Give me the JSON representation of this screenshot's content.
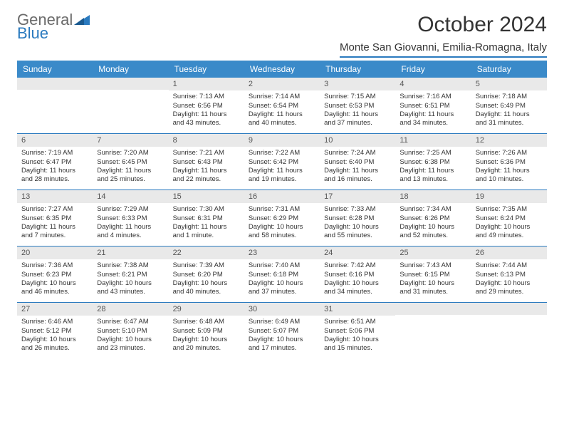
{
  "logo": {
    "part1": "General",
    "part2": "Blue"
  },
  "header": {
    "title": "October 2024",
    "location": "Monte San Giovanni, Emilia-Romagna, Italy"
  },
  "colors": {
    "header_bar": "#3a8ac9",
    "accent": "#2a7abf",
    "daynum_bg": "#e9e9e9"
  },
  "day_names": [
    "Sunday",
    "Monday",
    "Tuesday",
    "Wednesday",
    "Thursday",
    "Friday",
    "Saturday"
  ],
  "weeks": [
    [
      null,
      null,
      {
        "n": "1",
        "sr": "7:13 AM",
        "ss": "6:56 PM",
        "dl": "11 hours and 43 minutes."
      },
      {
        "n": "2",
        "sr": "7:14 AM",
        "ss": "6:54 PM",
        "dl": "11 hours and 40 minutes."
      },
      {
        "n": "3",
        "sr": "7:15 AM",
        "ss": "6:53 PM",
        "dl": "11 hours and 37 minutes."
      },
      {
        "n": "4",
        "sr": "7:16 AM",
        "ss": "6:51 PM",
        "dl": "11 hours and 34 minutes."
      },
      {
        "n": "5",
        "sr": "7:18 AM",
        "ss": "6:49 PM",
        "dl": "11 hours and 31 minutes."
      }
    ],
    [
      {
        "n": "6",
        "sr": "7:19 AM",
        "ss": "6:47 PM",
        "dl": "11 hours and 28 minutes."
      },
      {
        "n": "7",
        "sr": "7:20 AM",
        "ss": "6:45 PM",
        "dl": "11 hours and 25 minutes."
      },
      {
        "n": "8",
        "sr": "7:21 AM",
        "ss": "6:43 PM",
        "dl": "11 hours and 22 minutes."
      },
      {
        "n": "9",
        "sr": "7:22 AM",
        "ss": "6:42 PM",
        "dl": "11 hours and 19 minutes."
      },
      {
        "n": "10",
        "sr": "7:24 AM",
        "ss": "6:40 PM",
        "dl": "11 hours and 16 minutes."
      },
      {
        "n": "11",
        "sr": "7:25 AM",
        "ss": "6:38 PM",
        "dl": "11 hours and 13 minutes."
      },
      {
        "n": "12",
        "sr": "7:26 AM",
        "ss": "6:36 PM",
        "dl": "11 hours and 10 minutes."
      }
    ],
    [
      {
        "n": "13",
        "sr": "7:27 AM",
        "ss": "6:35 PM",
        "dl": "11 hours and 7 minutes."
      },
      {
        "n": "14",
        "sr": "7:29 AM",
        "ss": "6:33 PM",
        "dl": "11 hours and 4 minutes."
      },
      {
        "n": "15",
        "sr": "7:30 AM",
        "ss": "6:31 PM",
        "dl": "11 hours and 1 minute."
      },
      {
        "n": "16",
        "sr": "7:31 AM",
        "ss": "6:29 PM",
        "dl": "10 hours and 58 minutes."
      },
      {
        "n": "17",
        "sr": "7:33 AM",
        "ss": "6:28 PM",
        "dl": "10 hours and 55 minutes."
      },
      {
        "n": "18",
        "sr": "7:34 AM",
        "ss": "6:26 PM",
        "dl": "10 hours and 52 minutes."
      },
      {
        "n": "19",
        "sr": "7:35 AM",
        "ss": "6:24 PM",
        "dl": "10 hours and 49 minutes."
      }
    ],
    [
      {
        "n": "20",
        "sr": "7:36 AM",
        "ss": "6:23 PM",
        "dl": "10 hours and 46 minutes."
      },
      {
        "n": "21",
        "sr": "7:38 AM",
        "ss": "6:21 PM",
        "dl": "10 hours and 43 minutes."
      },
      {
        "n": "22",
        "sr": "7:39 AM",
        "ss": "6:20 PM",
        "dl": "10 hours and 40 minutes."
      },
      {
        "n": "23",
        "sr": "7:40 AM",
        "ss": "6:18 PM",
        "dl": "10 hours and 37 minutes."
      },
      {
        "n": "24",
        "sr": "7:42 AM",
        "ss": "6:16 PM",
        "dl": "10 hours and 34 minutes."
      },
      {
        "n": "25",
        "sr": "7:43 AM",
        "ss": "6:15 PM",
        "dl": "10 hours and 31 minutes."
      },
      {
        "n": "26",
        "sr": "7:44 AM",
        "ss": "6:13 PM",
        "dl": "10 hours and 29 minutes."
      }
    ],
    [
      {
        "n": "27",
        "sr": "6:46 AM",
        "ss": "5:12 PM",
        "dl": "10 hours and 26 minutes."
      },
      {
        "n": "28",
        "sr": "6:47 AM",
        "ss": "5:10 PM",
        "dl": "10 hours and 23 minutes."
      },
      {
        "n": "29",
        "sr": "6:48 AM",
        "ss": "5:09 PM",
        "dl": "10 hours and 20 minutes."
      },
      {
        "n": "30",
        "sr": "6:49 AM",
        "ss": "5:07 PM",
        "dl": "10 hours and 17 minutes."
      },
      {
        "n": "31",
        "sr": "6:51 AM",
        "ss": "5:06 PM",
        "dl": "10 hours and 15 minutes."
      },
      null,
      null
    ]
  ],
  "labels": {
    "sunrise": "Sunrise: ",
    "sunset": "Sunset: ",
    "daylight": "Daylight: "
  }
}
